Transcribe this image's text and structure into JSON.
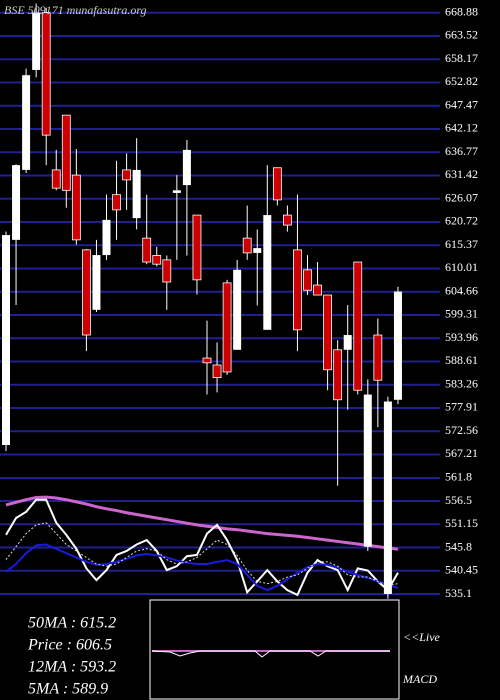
{
  "chart_data": {
    "type": "candlestick",
    "title": "BSE 509171 munafasutra.org",
    "ylim": [
      532.8,
      671.8
    ],
    "yticks": [
      668.88,
      663.52,
      658.17,
      652.82,
      647.47,
      642.12,
      636.77,
      631.42,
      626.07,
      620.72,
      615.37,
      610.01,
      604.66,
      599.31,
      593.96,
      588.61,
      583.26,
      577.91,
      572.56,
      567.21,
      561.8,
      556.5,
      551.15,
      545.8,
      540.45,
      535.1
    ],
    "grid": true,
    "up_color": "#ffffff",
    "down_color": "#cc0000",
    "open": [
      569.4,
      616.6,
      632.7,
      655.7,
      668.9,
      632.7,
      645.3,
      631.5,
      614.3,
      600.5,
      613.1,
      627,
      632.7,
      621.6,
      617,
      613,
      612,
      627.4,
      629.2,
      622.3,
      589.4,
      587.8,
      606.7,
      591.3,
      617,
      613.6,
      595.9,
      633.2,
      622.3,
      614.3,
      609.7,
      606.2,
      603.9,
      591.3,
      591.3,
      611.5,
      546,
      594.7,
      535.1,
      579.8
    ],
    "high": [
      618.5,
      634,
      656,
      671,
      670,
      637.3,
      645.3,
      637.5,
      614.5,
      616.6,
      627,
      634.8,
      636.5,
      640,
      627,
      615,
      613,
      631.5,
      639.6,
      622.3,
      598,
      593,
      607.4,
      612,
      624.5,
      619,
      633.8,
      633.2,
      624.5,
      627,
      613.1,
      611.5,
      603.9,
      593.5,
      601.6,
      611.5,
      584.5,
      598.5,
      580.5,
      605.8
    ],
    "low": [
      568,
      601.6,
      632,
      654,
      633.8,
      628,
      624,
      615.5,
      591,
      600,
      612,
      616.6,
      623.5,
      619,
      611,
      610.5,
      600.5,
      612,
      613,
      604,
      581,
      581.5,
      585.5,
      591.3,
      612,
      601.5,
      595.9,
      624.5,
      618.5,
      591,
      603.9,
      603.9,
      582,
      560,
      577.5,
      581,
      545,
      573.5,
      534,
      578.8
    ],
    "close": [
      617.7,
      633.8,
      654.5,
      668.9,
      640.7,
      628.5,
      628,
      616.6,
      594.7,
      613.1,
      621.2,
      623.5,
      630.4,
      632.7,
      611.5,
      611,
      606.9,
      628,
      637.3,
      607.4,
      588.3,
      584.9,
      586.2,
      609.7,
      613.6,
      614.7,
      622.3,
      625.8,
      620,
      595.9,
      605,
      603.9,
      586.7,
      579.8,
      594.7,
      582,
      581,
      584.3,
      579.4,
      604.7
    ],
    "series": [
      {
        "color": "#cc66cc",
        "values": [
          555.6,
          556.2,
          556.8,
          557.3,
          557.4,
          557.2,
          556.8,
          556.3,
          555.8,
          555.2,
          554.7,
          554.3,
          553.8,
          553.4,
          553,
          552.6,
          552.2,
          551.8,
          551.4,
          551,
          550.7,
          550.4,
          550.1,
          549.9,
          549.6,
          549.3,
          549,
          548.8,
          548.6,
          548.4,
          548.1,
          547.8,
          547.5,
          547.2,
          546.9,
          546.6,
          546.3,
          546,
          545.7,
          545.4
        ]
      },
      {
        "color": "#ffffff",
        "values": [
          548.7,
          552.6,
          554,
          556.8,
          556.8,
          551.5,
          548.7,
          545.5,
          541,
          538.3,
          540.6,
          544.1,
          545,
          546.5,
          547.5,
          545,
          540.6,
          541.5,
          543.8,
          544.1,
          549,
          551,
          547.5,
          542.9,
          535.5,
          538,
          540.6,
          538,
          536,
          534.9,
          540,
          542.9,
          541.5,
          540.6,
          536,
          541,
          540.5,
          538,
          536,
          540
        ]
      },
      {
        "color": "#1a1adf",
        "values": [
          540.2,
          542,
          544.5,
          546.3,
          546.5,
          545.5,
          544.5,
          543.5,
          542.5,
          541.8,
          542,
          542.5,
          543.2,
          544,
          544.3,
          544,
          543.5,
          542.8,
          542.3,
          542,
          542,
          542.5,
          542.9,
          542,
          539.5,
          537,
          536,
          537,
          538.5,
          540,
          541.3,
          542,
          541.8,
          541.2,
          540.2,
          539.5,
          538.8,
          538,
          537.2,
          536.5
        ]
      },
      {
        "color": "#dddddd",
        "dashed": true,
        "values": [
          543,
          546,
          549,
          551,
          551.5,
          549,
          546.5,
          545,
          543.5,
          542,
          541.5,
          542,
          543.5,
          545,
          545.5,
          545,
          543,
          542,
          542.5,
          543.5,
          545.5,
          547.5,
          546.5,
          544,
          540.5,
          538,
          537.5,
          538,
          539,
          539.5,
          541,
          542.5,
          542.5,
          541.5,
          539.5,
          539,
          539,
          538,
          537,
          537.5
        ]
      }
    ],
    "info": [
      "50MA : 615.2",
      "Price   : 606.5",
      "12MA : 593.2",
      "5MA   : 589.9"
    ],
    "live_label": "<<Live",
    "indicator_label": "MACD"
  }
}
